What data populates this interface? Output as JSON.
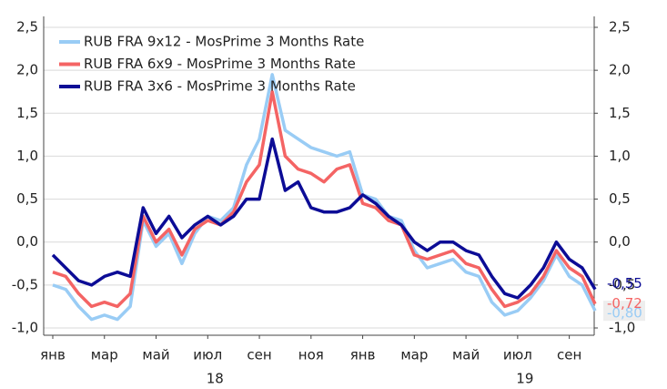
{
  "chart_data": {
    "type": "line",
    "categories": [
      "янв",
      null,
      null,
      null,
      "мар",
      null,
      null,
      null,
      "май",
      null,
      null,
      null,
      "июл",
      null,
      null,
      null,
      "сен",
      null,
      null,
      null,
      "ноя",
      null,
      null,
      null,
      "янв",
      null,
      null,
      null,
      "мар",
      null,
      null,
      null,
      "май",
      null,
      null,
      null,
      "июл",
      null,
      null,
      null,
      "сен",
      null,
      null
    ],
    "year_labels": [
      {
        "label": "18",
        "category": 12
      },
      {
        "label": "19",
        "category": 36
      }
    ],
    "series": [
      {
        "name": "RUB FRA 9x12 - MosPrime 3 Months Rate",
        "color": "#99ccf5",
        "end_label": "-0,80",
        "values": [
          -0.5,
          -0.55,
          -0.75,
          -0.9,
          -0.85,
          -0.9,
          -0.75,
          0.25,
          -0.05,
          0.1,
          -0.25,
          0.1,
          0.3,
          0.25,
          0.4,
          0.9,
          1.2,
          1.95,
          1.3,
          1.2,
          1.1,
          1.05,
          1.0,
          1.05,
          0.55,
          0.5,
          0.3,
          0.25,
          -0.1,
          -0.3,
          -0.25,
          -0.2,
          -0.35,
          -0.4,
          -0.7,
          -0.85,
          -0.8,
          -0.65,
          -0.45,
          -0.15,
          -0.4,
          -0.5,
          -0.8
        ]
      },
      {
        "name": "RUB FRA 6x9 - MosPrime 3 Months Rate",
        "color": "#f46464",
        "end_label": "-0,72",
        "values": [
          -0.35,
          -0.4,
          -0.6,
          -0.75,
          -0.7,
          -0.75,
          -0.6,
          0.3,
          0.0,
          0.15,
          -0.15,
          0.15,
          0.25,
          0.2,
          0.35,
          0.7,
          0.9,
          1.75,
          1.0,
          0.85,
          0.8,
          0.7,
          0.85,
          0.9,
          0.45,
          0.4,
          0.25,
          0.2,
          -0.15,
          -0.2,
          -0.15,
          -0.1,
          -0.25,
          -0.3,
          -0.55,
          -0.75,
          -0.7,
          -0.6,
          -0.4,
          -0.1,
          -0.3,
          -0.4,
          -0.72
        ]
      },
      {
        "name": "RUB FRA 3x6 - MosPrime 3 Months Rate",
        "color": "#0c0c96",
        "end_label": "-0,55",
        "values": [
          -0.15,
          -0.3,
          -0.45,
          -0.5,
          -0.4,
          -0.35,
          -0.4,
          0.4,
          0.1,
          0.3,
          0.05,
          0.2,
          0.3,
          0.2,
          0.3,
          0.5,
          0.5,
          1.2,
          0.6,
          0.7,
          0.4,
          0.35,
          0.35,
          0.4,
          0.55,
          0.45,
          0.3,
          0.2,
          0.0,
          -0.1,
          0.0,
          0.0,
          -0.1,
          -0.15,
          -0.4,
          -0.6,
          -0.65,
          -0.5,
          -0.3,
          0.0,
          -0.2,
          -0.3,
          -0.55
        ]
      }
    ],
    "ylim": [
      -1.0,
      2.5
    ],
    "yticks": [
      {
        "value": -1.0,
        "label": "-1,0"
      },
      {
        "value": -0.5,
        "label": "-0,5"
      },
      {
        "value": 0.0,
        "label": "0,0"
      },
      {
        "value": 0.5,
        "label": "0,5"
      },
      {
        "value": 1.0,
        "label": "1,0"
      },
      {
        "value": 1.5,
        "label": "1,5"
      },
      {
        "value": 2.0,
        "label": "2,0"
      },
      {
        "value": 2.5,
        "label": "2,5"
      }
    ],
    "y2lim": [
      -1.0,
      2.5
    ],
    "y2ticks": [
      {
        "value": -1.0,
        "label": "-1,0"
      },
      {
        "value": -0.5,
        "label": "-0,5"
      },
      {
        "value": 0.0,
        "label": "0,0"
      },
      {
        "value": 0.5,
        "label": "0,5"
      },
      {
        "value": 1.0,
        "label": "1,0"
      },
      {
        "value": 1.5,
        "label": "1,5"
      },
      {
        "value": 2.0,
        "label": "2,0"
      },
      {
        "value": 2.5,
        "label": "2,5"
      }
    ],
    "grid": true,
    "legend": "top-left"
  }
}
